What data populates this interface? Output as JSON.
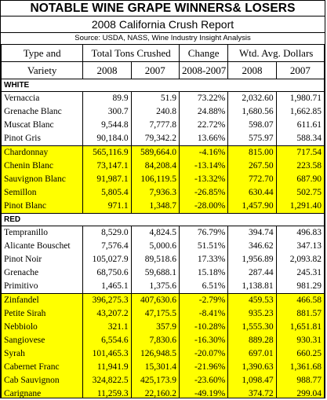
{
  "title": "NOTABLE WINE GRAPE WINNERS& LOSERS",
  "subtitle": "2008 California Crush Report",
  "source": "Source: USDA, NASS, Wine Industry Insight Analysis",
  "headers": {
    "type_line1": "Type and",
    "type_line2": "Variety",
    "total_tons": "Total Tons Crushed",
    "change": "Change",
    "avg_dollars": "Wtd. Avg. Dollars",
    "y2008": "2008",
    "y2007": "2007",
    "change_period": "2008-2007",
    "y2008b": "2008",
    "y2007b": "2007"
  },
  "sections": {
    "white": "WHITE",
    "red": "RED"
  },
  "white_winners": [
    {
      "variety": "Vernaccia",
      "t2008": "89.9",
      "t2007": "51.9",
      "change": "73.22%",
      "d2008": "2,032.60",
      "d2007": "1,980.71"
    },
    {
      "variety": "Grenache Blanc",
      "t2008": "300.7",
      "t2007": "240.8",
      "change": "24.88%",
      "d2008": "1,680.56",
      "d2007": "1,662.85"
    },
    {
      "variety": "Muscat Blanc",
      "t2008": "9,544.8",
      "t2007": "7,777.8",
      "change": "22.72%",
      "d2008": "598.07",
      "d2007": "611.61"
    },
    {
      "variety": "Pinot Gris",
      "t2008": "90,184.0",
      "t2007": "79,342.2",
      "change": "13.66%",
      "d2008": "575.97",
      "d2007": "588.34"
    }
  ],
  "white_losers": [
    {
      "variety": "Chardonnay",
      "t2008": "565,116.9",
      "t2007": "589,664.0",
      "change": "-4.16%",
      "d2008": "815.00",
      "d2007": "717.54"
    },
    {
      "variety": "Chenin Blanc",
      "t2008": "73,147.1",
      "t2007": "84,208.4",
      "change": "-13.14%",
      "d2008": "267.50",
      "d2007": "223.58"
    },
    {
      "variety": "Sauvignon Blanc",
      "t2008": "91,987.1",
      "t2007": "106,119.5",
      "change": "-13.32%",
      "d2008": "772.70",
      "d2007": "687.90"
    },
    {
      "variety": "Semillon",
      "t2008": "5,805.4",
      "t2007": "7,936.3",
      "change": "-26.85%",
      "d2008": "630.44",
      "d2007": "502.75"
    },
    {
      "variety": "Pinot Blanc",
      "t2008": "971.1",
      "t2007": "1,348.7",
      "change": "-28.00%",
      "d2008": "1,457.90",
      "d2007": "1,291.40"
    }
  ],
  "red_winners": [
    {
      "variety": "Tempranillo",
      "t2008": "8,529.0",
      "t2007": "4,824.5",
      "change": "76.79%",
      "d2008": "394.74",
      "d2007": "496.83"
    },
    {
      "variety": "Alicante Bouschet",
      "t2008": "7,576.4",
      "t2007": "5,000.6",
      "change": "51.51%",
      "d2008": "346.62",
      "d2007": "347.13"
    },
    {
      "variety": "Pinot Noir",
      "t2008": "105,027.9",
      "t2007": "89,518.6",
      "change": "17.33%",
      "d2008": "1,956.89",
      "d2007": "2,093.82"
    },
    {
      "variety": "Grenache",
      "t2008": "68,750.6",
      "t2007": "59,688.1",
      "change": "15.18%",
      "d2008": "287.44",
      "d2007": "245.31"
    },
    {
      "variety": "Primitivo",
      "t2008": "1,465.1",
      "t2007": "1,375.6",
      "change": "6.51%",
      "d2008": "1,138.81",
      "d2007": "981.29"
    }
  ],
  "red_losers": [
    {
      "variety": "Zinfandel",
      "t2008": "396,275.3",
      "t2007": "407,630.6",
      "change": "-2.79%",
      "d2008": "459.53",
      "d2007": "466.58"
    },
    {
      "variety": "Petite Sirah",
      "t2008": "43,207.2",
      "t2007": "47,175.5",
      "change": "-8.41%",
      "d2008": "935.23",
      "d2007": "881.57"
    },
    {
      "variety": "Nebbiolo",
      "t2008": "321.1",
      "t2007": "357.9",
      "change": "-10.28%",
      "d2008": "1,555.30",
      "d2007": "1,651.81"
    },
    {
      "variety": "Sangiovese",
      "t2008": "6,554.6",
      "t2007": "7,830.6",
      "change": "-16.30%",
      "d2008": "889.28",
      "d2007": "930.31"
    },
    {
      "variety": "Syrah",
      "t2008": "101,465.3",
      "t2007": "126,948.5",
      "change": "-20.07%",
      "d2008": "697.01",
      "d2007": "660.25"
    },
    {
      "variety": "Cabernet Franc",
      "t2008": "11,941.9",
      "t2007": "15,301.4",
      "change": "-21.96%",
      "d2008": "1,390.63",
      "d2007": "1,361.68"
    },
    {
      "variety": "Cab Sauvignon",
      "t2008": "324,822.5",
      "t2007": "425,173.9",
      "change": "-23.60%",
      "d2008": "1,098.47",
      "d2007": "988.77"
    },
    {
      "variety": "Carignane",
      "t2008": "11,259.3",
      "t2007": "22,160.2",
      "change": "-49.19%",
      "d2008": "374.72",
      "d2007": "299.04"
    }
  ],
  "colors": {
    "loser_highlight": "#ffff00",
    "background": "#ffffff",
    "border": "#000000"
  }
}
